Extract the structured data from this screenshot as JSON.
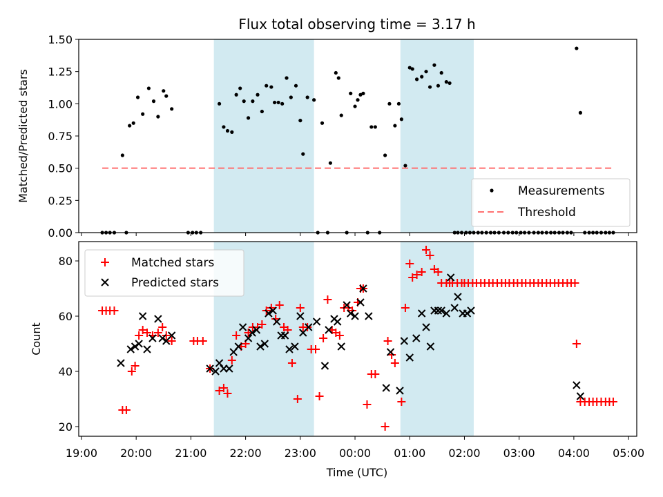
{
  "title": "Flux total observing time = 3.17 h",
  "colors": {
    "span": "#add8e6",
    "measure": "#000000",
    "threshold": "#ff6f6f",
    "matched": "#ff0000",
    "predicted": "#000000"
  },
  "chart_data": [
    {
      "type": "scatter",
      "ylabel": "Matched/Predicted stars",
      "ylim": [
        0,
        1.5
      ],
      "yticks": [
        0,
        0.25,
        0.5,
        0.75,
        1.0,
        1.25,
        1.5
      ],
      "ytick_labels": [
        "0.00",
        "0.25",
        "0.50",
        "0.75",
        "1.00",
        "1.25",
        "1.50"
      ],
      "x_unit": "hours since 19:00 UTC",
      "xlim": [
        -0.05,
        10.15
      ],
      "shaded_spans": [
        [
          2.42,
          4.25
        ],
        [
          5.83,
          7.17
        ]
      ],
      "legend": {
        "position": "bottom-right",
        "entries": [
          "Measurements",
          "Threshold"
        ]
      },
      "threshold": {
        "name": "Threshold",
        "value": 0.5,
        "x_range": [
          0.38,
          9.72
        ]
      },
      "series": [
        {
          "name": "Measurements",
          "x": [
            0.38,
            0.45,
            0.52,
            0.6,
            0.75,
            0.82,
            0.88,
            0.95,
            1.03,
            1.12,
            1.23,
            1.32,
            1.4,
            1.5,
            1.55,
            1.65,
            1.95,
            2.03,
            2.1,
            2.18,
            2.52,
            2.6,
            2.67,
            2.75,
            2.83,
            2.9,
            2.97,
            3.05,
            3.13,
            3.22,
            3.3,
            3.38,
            3.47,
            3.53,
            3.6,
            3.67,
            3.75,
            3.83,
            3.92,
            4.0,
            4.05,
            4.13,
            4.25,
            4.32,
            4.4,
            4.5,
            4.55,
            4.65,
            4.7,
            4.75,
            4.85,
            4.92,
            5.0,
            5.05,
            5.1,
            5.15,
            5.23,
            5.3,
            5.37,
            5.45,
            5.55,
            5.63,
            5.73,
            5.8,
            5.85,
            5.92,
            6.0,
            6.05,
            6.13,
            6.22,
            6.3,
            6.37,
            6.45,
            6.52,
            6.58,
            6.67,
            6.73,
            6.82,
            6.88,
            6.95,
            7.03,
            7.1
          ],
          "y": [
            0,
            0,
            0,
            0,
            0.6,
            0,
            0.83,
            0.85,
            1.05,
            0.92,
            1.12,
            1.02,
            0.9,
            1.1,
            1.06,
            0.96,
            0,
            0,
            0,
            0,
            1.0,
            0.82,
            0.79,
            0.78,
            1.07,
            1.12,
            1.02,
            0.89,
            1.02,
            1.07,
            0.94,
            1.14,
            1.13,
            1.01,
            1.01,
            1.0,
            1.2,
            1.05,
            1.14,
            0.87,
            0.61,
            1.05,
            1.03,
            0,
            0.85,
            0,
            0.54,
            1.24,
            1.2,
            0.91,
            0,
            1.08,
            0.98,
            1.03,
            1.07,
            1.08,
            0,
            0.82,
            0.82,
            0,
            0.6,
            1.0,
            0.83,
            1.0,
            0.88,
            0.52,
            1.28,
            1.27,
            1.19,
            1.21,
            1.25,
            1.13,
            1.3,
            1.14,
            1.24,
            1.17,
            1.16,
            0,
            0,
            0,
            0,
            0
          ],
          "extra_x": [
            7.17,
            7.25,
            7.32,
            7.4,
            7.48,
            7.55,
            7.63,
            7.72,
            7.8,
            7.88,
            7.95,
            8.03,
            8.1,
            8.18,
            8.27,
            8.35,
            8.42,
            8.5,
            8.58,
            8.65,
            8.73,
            8.8,
            8.88,
            8.95,
            9.05,
            9.12,
            9.2,
            9.28,
            9.35,
            9.42,
            9.5,
            9.58,
            9.65,
            9.72
          ],
          "extra_y": [
            0,
            0,
            0,
            0,
            0,
            0,
            0,
            0,
            0,
            0,
            0,
            0,
            0,
            0,
            0,
            0,
            0,
            0,
            0,
            0,
            0,
            0,
            0,
            0,
            1.43,
            0.93,
            0,
            0,
            0,
            0,
            0,
            0,
            0,
            0
          ]
        }
      ]
    },
    {
      "type": "scatter",
      "xlabel": "Time (UTC)",
      "ylabel": "Count",
      "ylim": [
        16.5,
        87
      ],
      "yticks": [
        20,
        40,
        60,
        80
      ],
      "xticks": [
        0,
        1,
        2,
        3,
        4,
        5,
        6,
        7,
        8,
        9,
        10
      ],
      "xtick_labels": [
        "19:00",
        "20:00",
        "21:00",
        "22:00",
        "23:00",
        "00:00",
        "01:00",
        "02:00",
        "03:00",
        "04:00",
        "05:00"
      ],
      "xlim": [
        -0.05,
        10.15
      ],
      "shaded_spans": [
        [
          2.42,
          4.25
        ],
        [
          5.83,
          7.17
        ]
      ],
      "legend": {
        "position": "top-left",
        "entries": [
          "Matched stars",
          "Predicted stars"
        ]
      },
      "series": [
        {
          "name": "Matched stars",
          "marker": "+",
          "x": [
            0.38,
            0.45,
            0.52,
            0.6,
            0.75,
            0.82,
            0.92,
            0.98,
            1.05,
            1.12,
            1.2,
            1.3,
            1.4,
            1.48,
            1.55,
            1.65,
            2.05,
            2.12,
            2.22,
            2.35,
            2.52,
            2.6,
            2.67,
            2.75,
            2.83,
            2.92,
            3.0,
            3.05,
            3.13,
            3.22,
            3.3,
            3.38,
            3.47,
            3.55,
            3.62,
            3.7,
            3.77,
            3.85,
            3.95,
            4.0,
            4.05,
            4.13,
            4.2,
            4.28,
            4.35,
            4.42,
            4.5,
            4.58,
            4.65,
            4.72,
            4.8,
            4.88,
            4.95,
            5.05,
            5.1,
            5.15,
            5.22,
            5.3,
            5.37,
            5.55,
            5.6,
            5.67,
            5.73,
            5.85,
            5.92,
            6.0,
            6.05,
            6.13,
            6.22,
            6.3,
            6.37,
            6.45,
            6.52,
            6.58,
            6.67,
            6.73,
            6.78,
            6.87,
            6.95,
            7.0
          ],
          "y": [
            62,
            62,
            62,
            62,
            26,
            26,
            40,
            42,
            53,
            55,
            54,
            53,
            54,
            56,
            53,
            51,
            51,
            51,
            51,
            41,
            33,
            34,
            32,
            44,
            53,
            49,
            50,
            54,
            56,
            56,
            57,
            62,
            63,
            59,
            64,
            56,
            55,
            43,
            30,
            63,
            56,
            56,
            48,
            48,
            31,
            52,
            66,
            55,
            54,
            53,
            63,
            63,
            62,
            65,
            70,
            70,
            28,
            39,
            39,
            20,
            51,
            46,
            43,
            29,
            63,
            79,
            74,
            75,
            76,
            84,
            82,
            77,
            76,
            72,
            72,
            72,
            72,
            72,
            72,
            72
          ],
          "extra_x": [
            7.07,
            7.15,
            7.22,
            7.3,
            7.37,
            7.45,
            7.52,
            7.6,
            7.68,
            7.75,
            7.82,
            7.9,
            7.97,
            8.05,
            8.12,
            8.2,
            8.27,
            8.35,
            8.42,
            8.5,
            8.57,
            8.65,
            8.72,
            8.8,
            8.88,
            8.95,
            9.02,
            9.05,
            9.12,
            9.2,
            9.28,
            9.35,
            9.42,
            9.5,
            9.58,
            9.65,
            9.72
          ],
          "extra_y": [
            72,
            72,
            72,
            72,
            72,
            72,
            72,
            72,
            72,
            72,
            72,
            72,
            72,
            72,
            72,
            72,
            72,
            72,
            72,
            72,
            72,
            72,
            72,
            72,
            72,
            72,
            72,
            50,
            29,
            29,
            29,
            29,
            29,
            29,
            29,
            29,
            29
          ]
        },
        {
          "name": "Predicted stars",
          "marker": "x",
          "x": [
            0.72,
            0.9,
            0.98,
            1.05,
            1.12,
            1.2,
            1.3,
            1.4,
            1.48,
            1.55,
            1.65,
            2.35,
            2.45,
            2.52,
            2.6,
            2.7,
            2.78,
            2.87,
            2.95,
            3.05,
            3.12,
            3.2,
            3.27,
            3.35,
            3.42,
            3.5,
            3.57,
            3.65,
            3.72,
            3.8,
            3.9,
            4.0,
            4.05,
            4.15,
            4.3,
            4.45,
            4.52,
            4.62,
            4.68,
            4.75,
            4.85,
            4.92,
            5.0,
            5.1,
            5.15,
            5.25,
            5.57,
            5.65,
            5.82,
            5.9,
            6.0,
            6.12,
            6.22,
            6.3,
            6.38,
            6.45,
            6.52,
            6.58,
            6.67,
            6.75,
            6.82,
            6.88,
            6.97,
            7.05
          ],
          "y": [
            43,
            48,
            49,
            50,
            60,
            48,
            52,
            59,
            52,
            51,
            53,
            41,
            40,
            43,
            41,
            41,
            47,
            49,
            56,
            52,
            54,
            55,
            49,
            50,
            61,
            62,
            58,
            53,
            53,
            48,
            49,
            60,
            54,
            56,
            58,
            42,
            55,
            59,
            58,
            49,
            64,
            61,
            60,
            65,
            70,
            60,
            34,
            47,
            33,
            51,
            45,
            52,
            61,
            56,
            49,
            62,
            62,
            62,
            61,
            74,
            63,
            67,
            61,
            61
          ],
          "extra_x": [
            7.12
          ],
          "extra_y": [
            62
          ],
          "extra2_x": [
            9.05,
            9.12
          ],
          "extra2_y": [
            35,
            31
          ]
        }
      ]
    }
  ]
}
